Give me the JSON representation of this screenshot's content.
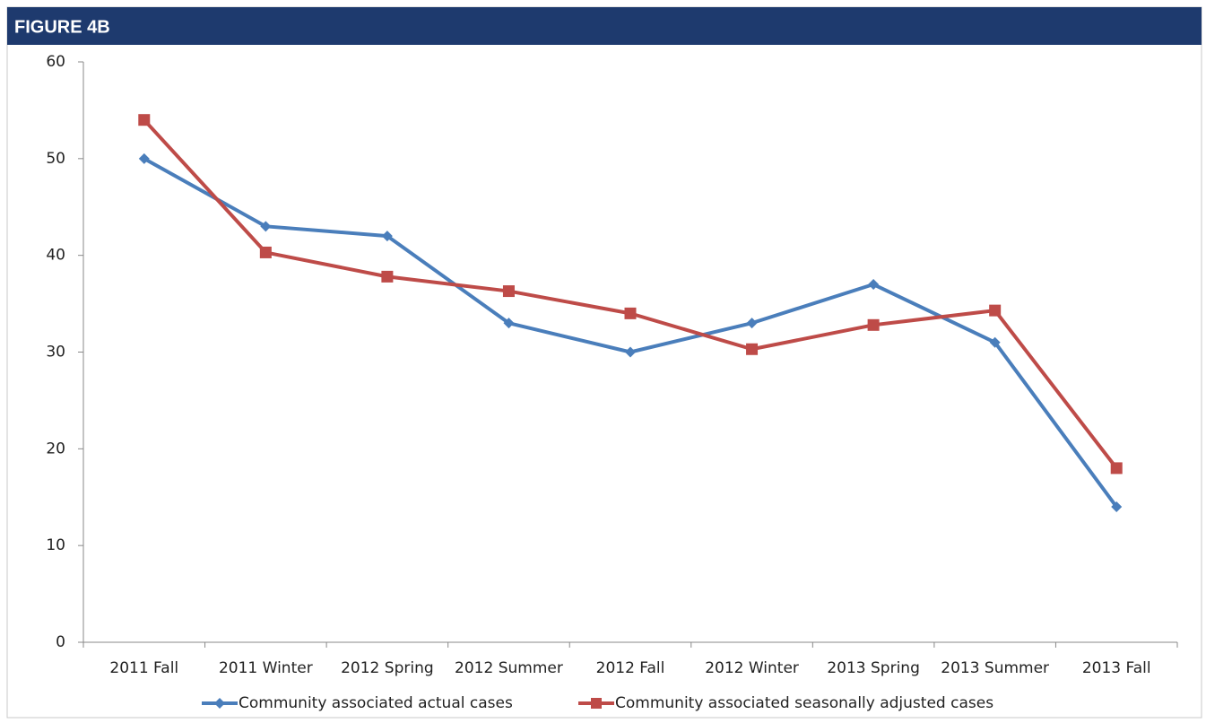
{
  "chart_data": {
    "type": "line",
    "title": "FIGURE 4B",
    "categories": [
      "2011 Fall",
      "2011 Winter",
      "2012 Spring",
      "2012 Summer",
      "2012 Fall",
      "2012 Winter",
      "2013 Spring",
      "2013 Summer",
      "2013 Fall"
    ],
    "series": [
      {
        "name": "Community associated actual cases",
        "color": "#4a7ebb",
        "marker": "diamond",
        "values": [
          50,
          43,
          42,
          33,
          30,
          33,
          37,
          31,
          14
        ]
      },
      {
        "name": "Community associated seasonally adjusted cases",
        "color": "#be4b48",
        "marker": "square",
        "values": [
          54,
          40.3,
          37.8,
          36.3,
          34,
          30.3,
          32.8,
          34.3,
          18
        ]
      }
    ],
    "ylim": [
      0,
      60
    ],
    "yticks": [
      0,
      10,
      20,
      30,
      40,
      50,
      60
    ],
    "grid": false,
    "legend": "bottom"
  }
}
